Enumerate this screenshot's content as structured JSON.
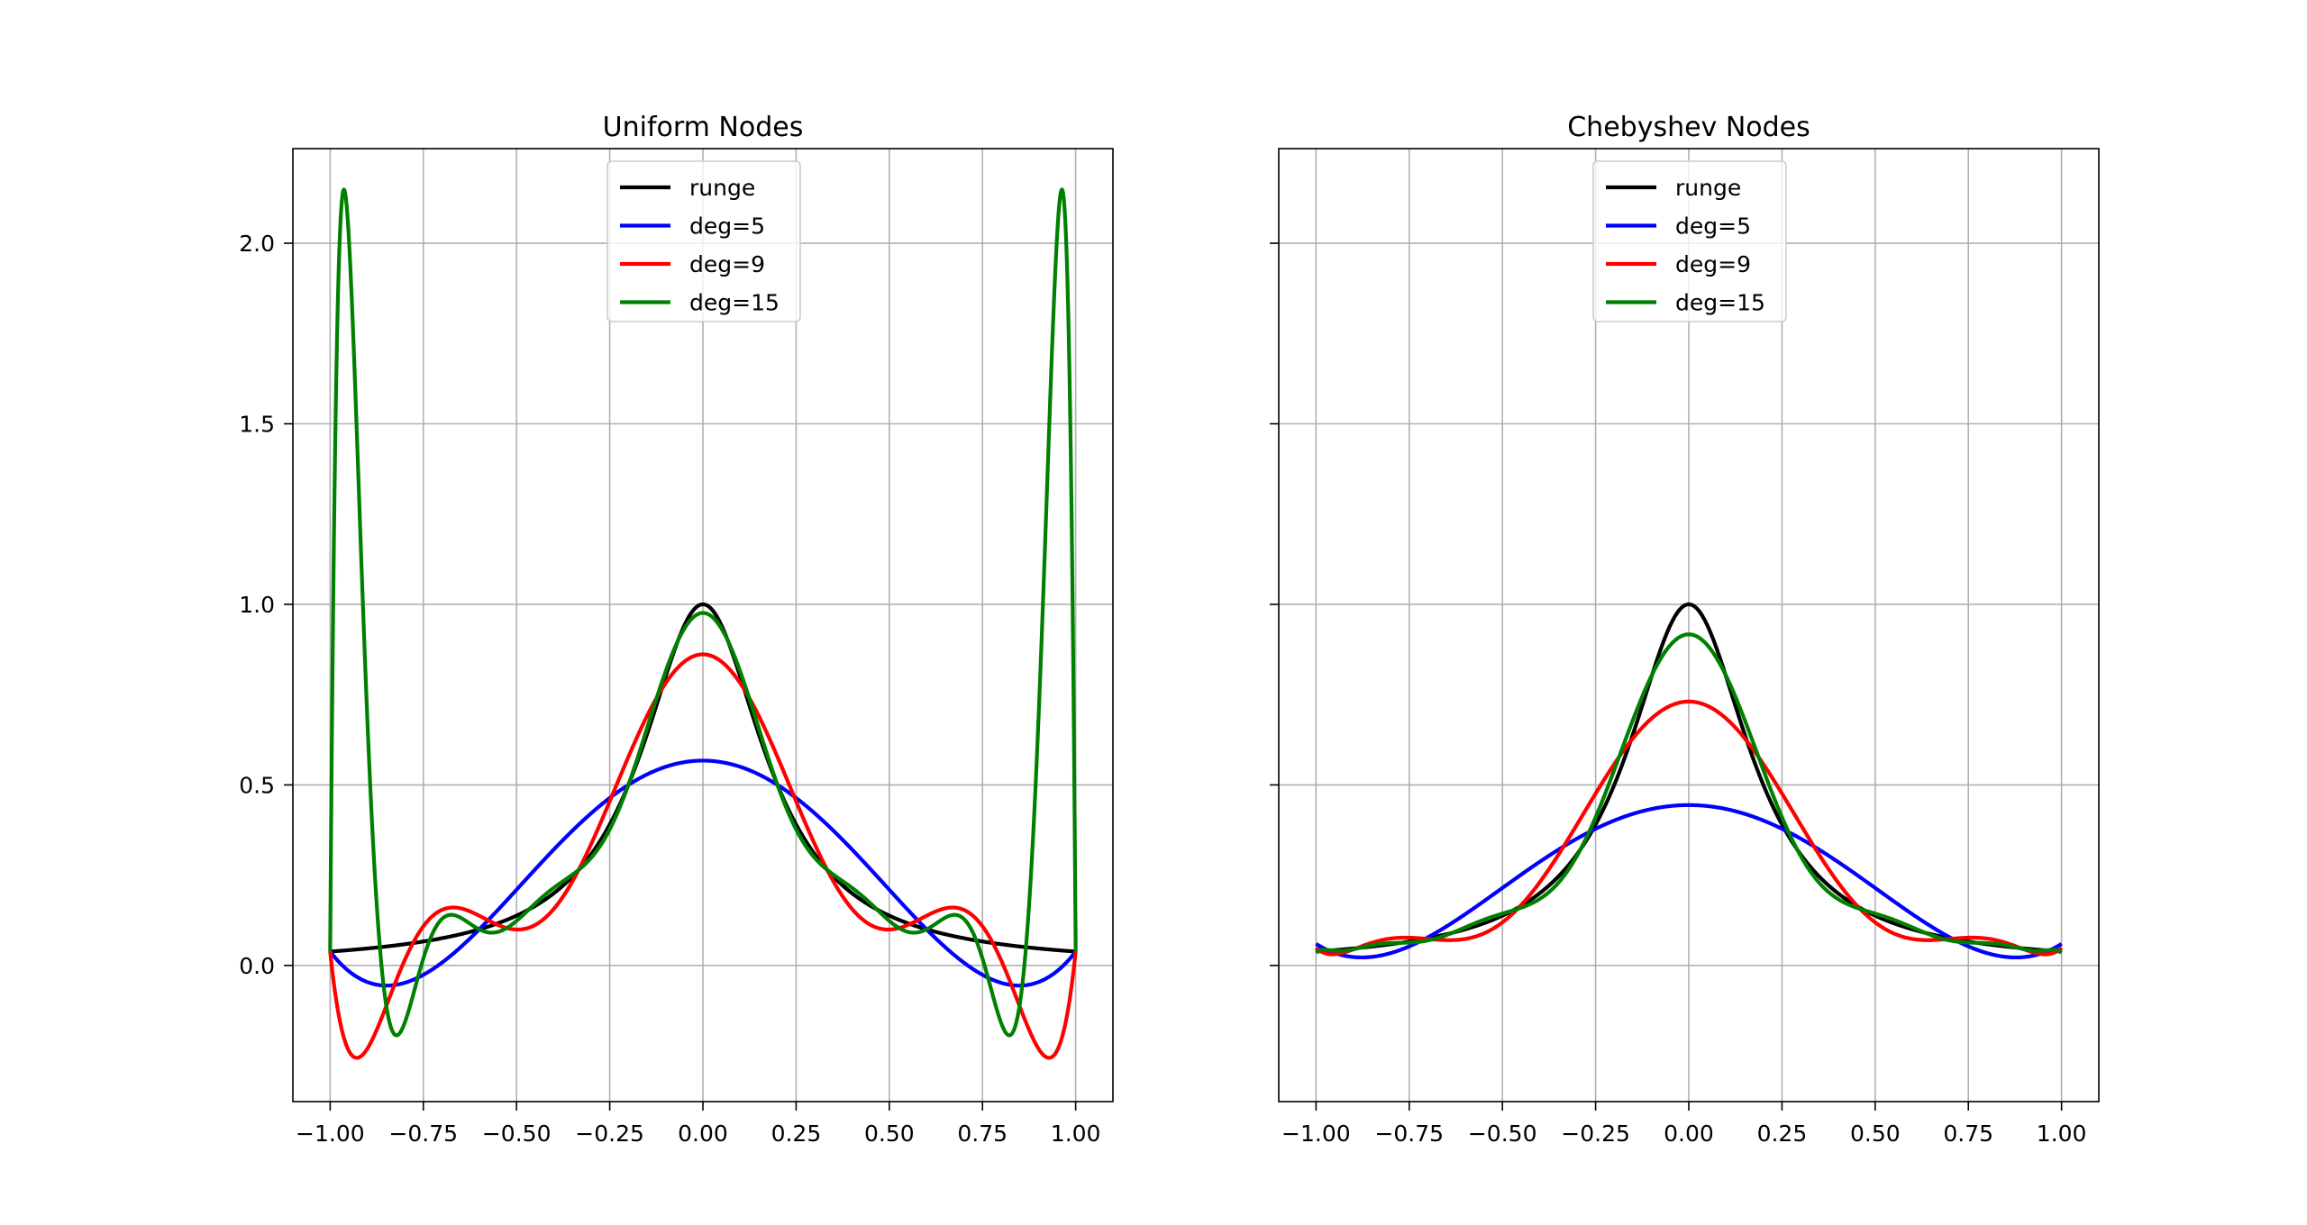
{
  "chart_data": [
    {
      "type": "line",
      "title": "Uniform Nodes",
      "xlabel": "",
      "ylabel": "",
      "xlim": [
        -1.1,
        1.1
      ],
      "ylim": [
        -0.377,
        2.262
      ],
      "x_ticks": [
        -1.0,
        -0.75,
        -0.5,
        -0.25,
        0.0,
        0.25,
        0.5,
        0.75,
        1.0
      ],
      "x_tick_labels": [
        "−1.00",
        "−0.75",
        "−0.50",
        "−0.25",
        "0.00",
        "0.25",
        "0.50",
        "0.75",
        "1.00"
      ],
      "y_ticks": [
        0.0,
        0.5,
        1.0,
        1.5,
        2.0
      ],
      "y_tick_labels": [
        "0.0",
        "0.5",
        "1.0",
        "1.5",
        "2.0"
      ],
      "grid": true,
      "legend_position": "top-center",
      "function": "1/(1+25x^2)",
      "node_type": "uniform",
      "series": [
        {
          "name": "runge",
          "color": "#000000",
          "kind": "function"
        },
        {
          "name": "deg=5",
          "color": "#0000ff",
          "degree": 5
        },
        {
          "name": "deg=9",
          "color": "#ff0000",
          "degree": 9
        },
        {
          "name": "deg=15",
          "color": "#008000",
          "degree": 15
        }
      ]
    },
    {
      "type": "line",
      "title": "Chebyshev Nodes",
      "xlabel": "",
      "ylabel": "",
      "xlim": [
        -1.1,
        1.1
      ],
      "ylim": [
        -0.377,
        2.262
      ],
      "x_ticks": [
        -1.0,
        -0.75,
        -0.5,
        -0.25,
        0.0,
        0.25,
        0.5,
        0.75,
        1.0
      ],
      "x_tick_labels": [
        "−1.00",
        "−0.75",
        "−0.50",
        "−0.25",
        "0.00",
        "0.25",
        "0.50",
        "0.75",
        "1.00"
      ],
      "y_ticks": [
        0.0,
        0.5,
        1.0,
        1.5,
        2.0
      ],
      "y_tick_labels": [],
      "grid": true,
      "legend_position": "top-center",
      "function": "1/(1+25x^2)",
      "node_type": "chebyshev",
      "series": [
        {
          "name": "runge",
          "color": "#000000",
          "kind": "function"
        },
        {
          "name": "deg=5",
          "color": "#0000ff",
          "degree": 5
        },
        {
          "name": "deg=9",
          "color": "#ff0000",
          "degree": 9
        },
        {
          "name": "deg=15",
          "color": "#008000",
          "degree": 15
        }
      ]
    }
  ]
}
